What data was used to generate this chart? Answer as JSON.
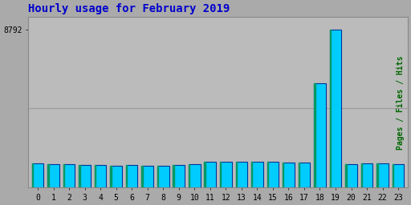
{
  "title": "Hourly usage for February 2019",
  "xlabel": "",
  "ylabel": "Pages / Files / Hits",
  "ytick_label": "8792",
  "hours": [
    0,
    1,
    2,
    3,
    4,
    5,
    6,
    7,
    8,
    9,
    10,
    11,
    12,
    13,
    14,
    15,
    16,
    17,
    18,
    19,
    20,
    21,
    22,
    23
  ],
  "values": [
    1350,
    1320,
    1300,
    1260,
    1250,
    1230,
    1240,
    1220,
    1210,
    1240,
    1280,
    1430,
    1450,
    1420,
    1420,
    1420,
    1400,
    1380,
    5800,
    8792,
    1290,
    1360,
    1330,
    1300
  ],
  "bar_face_color": "#00ccff",
  "bar_edge_color": "#003399",
  "bar_left_color": "#009966",
  "background_color": "#aaaaaa",
  "plot_bg_color": "#bbbbbb",
  "title_color": "#0000cc",
  "ylabel_color": "#006600",
  "grid_color": "#999999",
  "max_value": 8792,
  "ylim_max": 9500
}
